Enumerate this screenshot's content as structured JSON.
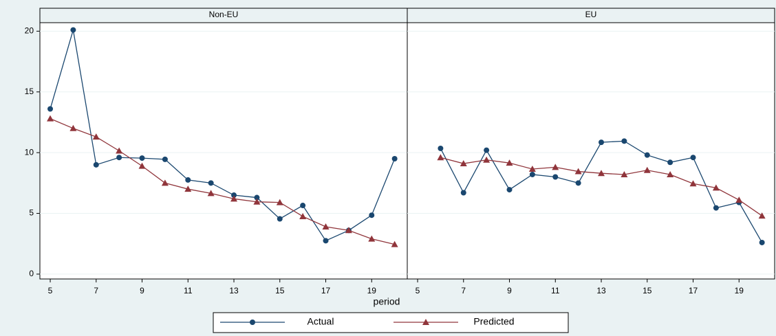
{
  "chart_data": {
    "type": "line",
    "panels": [
      "Non-EU",
      "EU"
    ],
    "xlabel": "period",
    "x": [
      [
        5,
        6,
        7,
        8,
        9,
        10,
        11,
        12,
        13,
        14,
        15,
        16,
        17,
        18,
        19,
        20
      ],
      [
        6,
        7,
        8,
        9,
        10,
        11,
        12,
        13,
        14,
        15,
        16,
        17,
        18,
        19,
        20
      ]
    ],
    "series": [
      {
        "name": "Actual",
        "color": "#1a476f",
        "marker": "circle",
        "values": [
          [
            13.6,
            20.1,
            9.0,
            9.6,
            9.55,
            9.45,
            7.75,
            7.5,
            6.5,
            6.3,
            4.55,
            5.65,
            2.75,
            3.6,
            4.85,
            9.5
          ],
          [
            10.35,
            6.7,
            10.2,
            6.95,
            8.2,
            8.0,
            7.5,
            10.85,
            10.95,
            9.8,
            9.2,
            9.6,
            5.45,
            5.9,
            2.6
          ]
        ]
      },
      {
        "name": "Predicted",
        "color": "#90353b",
        "marker": "triangle",
        "values": [
          [
            12.8,
            12.0,
            11.3,
            10.15,
            8.9,
            7.5,
            7.0,
            6.65,
            6.2,
            5.95,
            5.9,
            4.75,
            3.9,
            3.6,
            2.9,
            2.45
          ],
          [
            9.6,
            9.1,
            9.4,
            9.15,
            8.65,
            8.8,
            8.45,
            8.3,
            8.2,
            8.55,
            8.2,
            7.45,
            7.1,
            6.1,
            4.8
          ]
        ]
      }
    ],
    "xlim": [
      4.55,
      20.55
    ],
    "xticks": [
      5,
      7,
      9,
      11,
      13,
      15,
      17,
      19
    ],
    "ylim": [
      -0.4,
      20.7
    ],
    "yticks": [
      0,
      5,
      10,
      15,
      20
    ],
    "grid": true
  }
}
